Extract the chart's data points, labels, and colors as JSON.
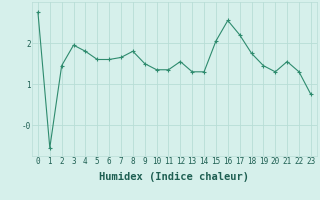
{
  "x": [
    0,
    1,
    2,
    3,
    4,
    5,
    6,
    7,
    8,
    9,
    10,
    11,
    12,
    13,
    14,
    15,
    16,
    17,
    18,
    19,
    20,
    21,
    22,
    23
  ],
  "y": [
    2.75,
    -0.55,
    1.45,
    1.95,
    1.8,
    1.6,
    1.6,
    1.65,
    1.8,
    1.5,
    1.35,
    1.35,
    1.55,
    1.3,
    1.3,
    2.05,
    2.55,
    2.2,
    1.75,
    1.45,
    1.3,
    1.55,
    1.3,
    0.75
  ],
  "line_color": "#2e8b6e",
  "marker": "+",
  "marker_size": 3,
  "bg_color": "#d6f0eb",
  "grid_color": "#b8ddd6",
  "xlabel": "Humidex (Indice chaleur)",
  "ylim": [
    -0.75,
    3.0
  ],
  "xlim": [
    -0.5,
    23.5
  ],
  "yticks": [
    0,
    1,
    2
  ],
  "ytick_labels": [
    "-0",
    "1",
    "2"
  ],
  "xticks": [
    0,
    1,
    2,
    3,
    4,
    5,
    6,
    7,
    8,
    9,
    10,
    11,
    12,
    13,
    14,
    15,
    16,
    17,
    18,
    19,
    20,
    21,
    22,
    23
  ],
  "font_color": "#1e5f52",
  "tick_fontsize": 5.5,
  "xlabel_fontsize": 7.5
}
